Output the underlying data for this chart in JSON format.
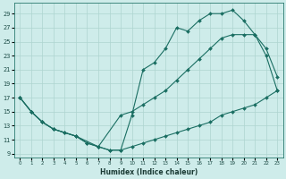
{
  "xlabel": "Humidex (Indice chaleur)",
  "bg_color": "#ceecea",
  "grid_color": "#aed4d0",
  "line_color": "#1a6e62",
  "xlim": [
    -0.5,
    23.5
  ],
  "ylim": [
    8.5,
    30.5
  ],
  "xticks": [
    0,
    1,
    2,
    3,
    4,
    5,
    6,
    7,
    8,
    9,
    10,
    11,
    12,
    13,
    14,
    15,
    16,
    17,
    18,
    19,
    20,
    21,
    22,
    23
  ],
  "yticks": [
    9,
    11,
    13,
    15,
    17,
    19,
    21,
    23,
    25,
    27,
    29
  ],
  "line1_x": [
    0,
    1,
    2,
    3,
    4,
    5,
    6,
    7,
    8,
    9,
    10,
    11,
    12,
    13,
    14,
    15,
    16,
    17,
    18,
    19,
    20,
    21,
    22,
    23
  ],
  "line1_y": [
    17.0,
    15.0,
    13.5,
    12.5,
    12.0,
    11.5,
    10.5,
    10.0,
    9.5,
    9.5,
    10.0,
    10.5,
    11.0,
    11.5,
    12.0,
    12.5,
    13.0,
    13.5,
    14.5,
    15.0,
    15.5,
    16.0,
    17.0,
    18.0
  ],
  "line2_x": [
    0,
    1,
    2,
    3,
    5,
    7,
    9,
    10,
    11,
    12,
    13,
    14,
    15,
    16,
    17,
    18,
    19,
    20,
    21,
    22,
    23
  ],
  "line2_y": [
    17.0,
    15.0,
    13.5,
    12.5,
    11.5,
    10.0,
    14.5,
    15.0,
    16.0,
    17.0,
    18.0,
    19.5,
    21.0,
    22.5,
    24.0,
    25.5,
    26.0,
    26.0,
    26.0,
    24.0,
    20.0
  ],
  "line3_x": [
    0,
    1,
    2,
    3,
    4,
    5,
    6,
    7,
    8,
    9,
    10,
    11,
    12,
    13,
    14,
    15,
    16,
    17,
    18,
    19,
    20,
    21,
    22,
    23
  ],
  "line3_y": [
    17.0,
    15.0,
    13.5,
    12.5,
    12.0,
    11.5,
    10.5,
    10.0,
    9.5,
    9.5,
    14.5,
    21.0,
    22.0,
    24.0,
    27.0,
    26.5,
    28.0,
    29.0,
    29.0,
    29.5,
    28.0,
    26.0,
    23.0,
    18.0
  ]
}
